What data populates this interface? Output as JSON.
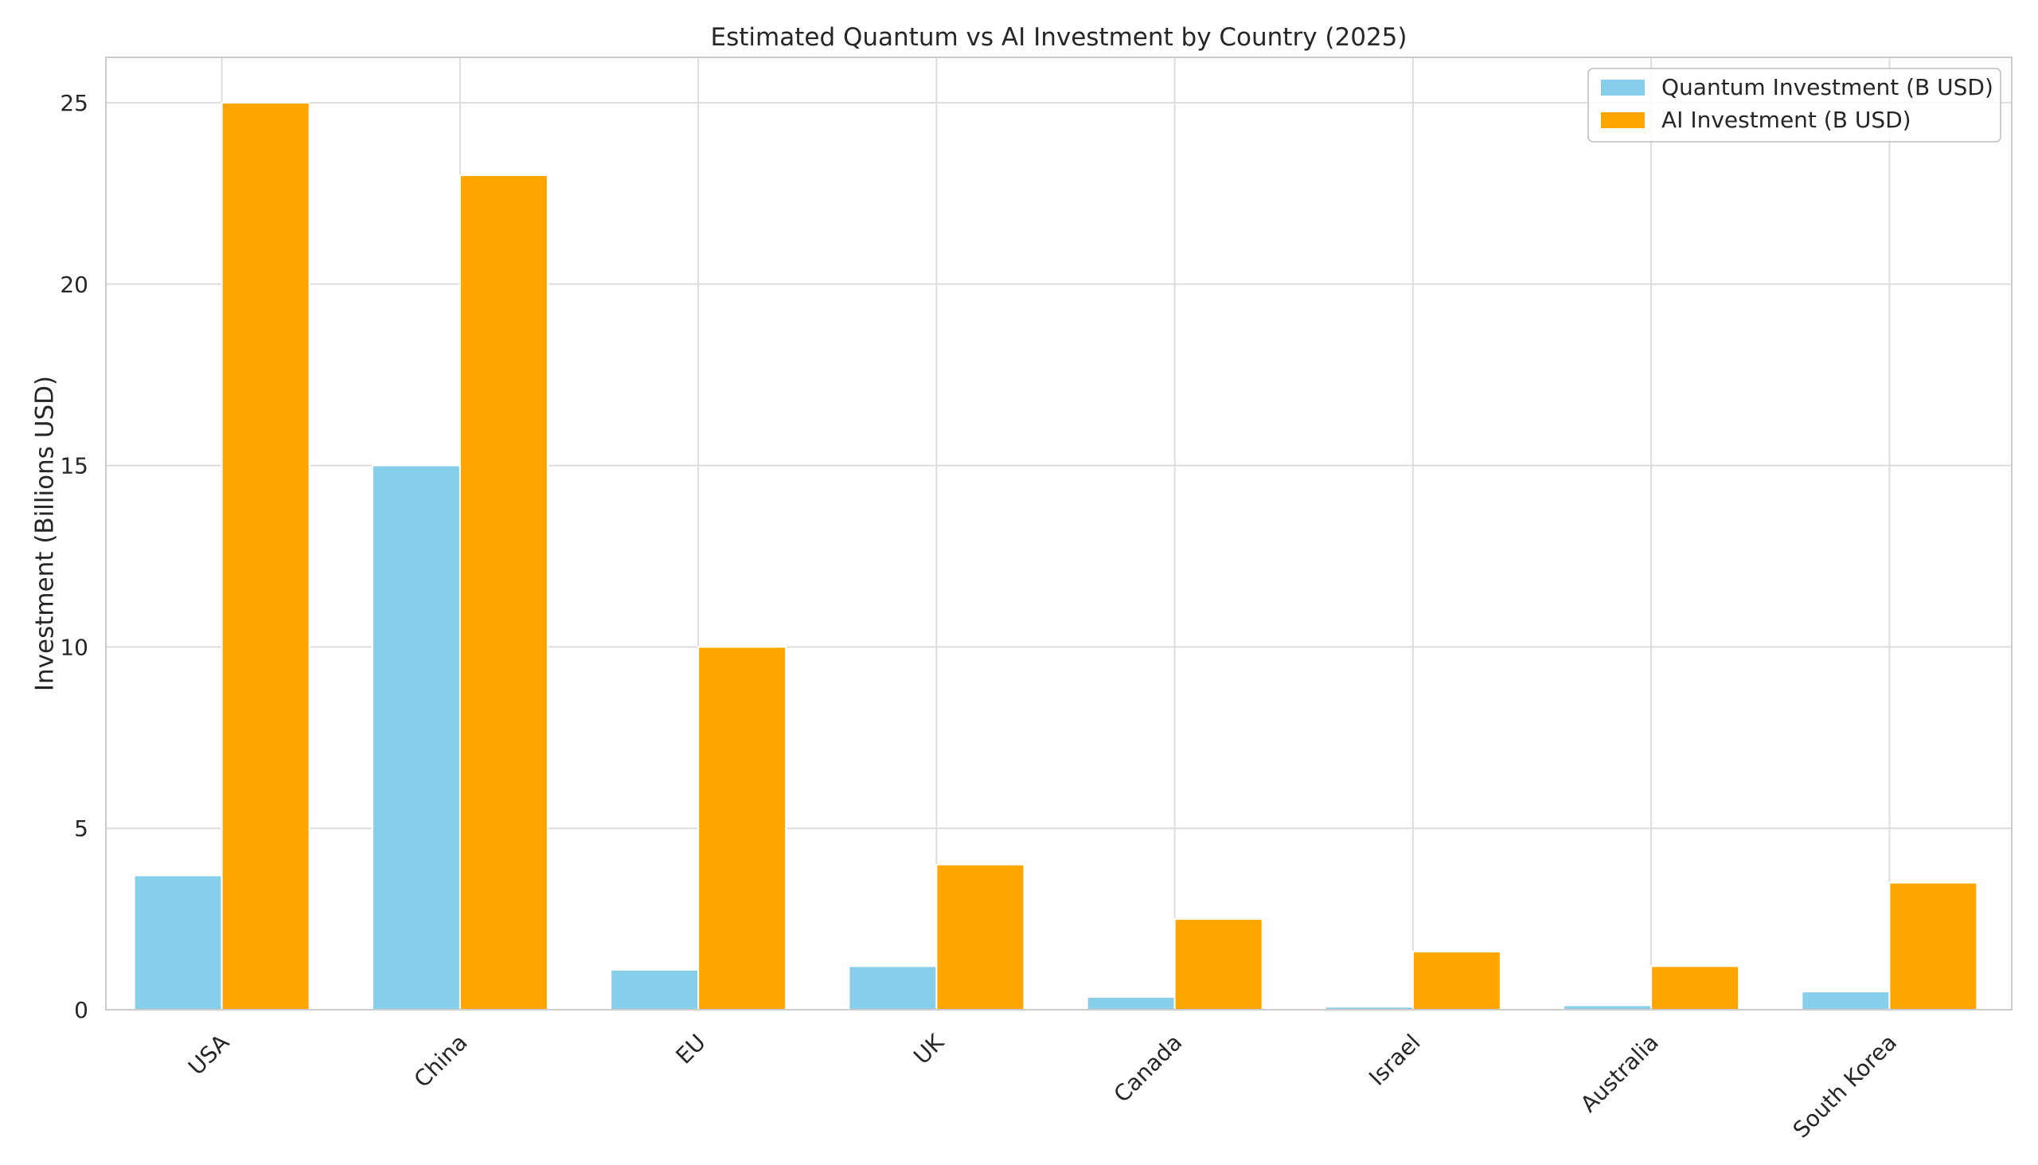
{
  "chart_data": {
    "type": "bar",
    "title": "Estimated Quantum vs AI Investment by Country (2025)",
    "xlabel": "",
    "ylabel": "Investment (Billions USD)",
    "categories": [
      "USA",
      "China",
      "EU",
      "UK",
      "Canada",
      "Israel",
      "Australia",
      "South Korea"
    ],
    "series": [
      {
        "name": "Quantum Investment (B USD)",
        "color": "#87ceeb",
        "values": [
          3.7,
          15.0,
          1.1,
          1.2,
          0.35,
          0.08,
          0.12,
          0.5
        ]
      },
      {
        "name": "AI Investment (B USD)",
        "color": "#ffa500",
        "values": [
          25.0,
          23.0,
          10.0,
          4.0,
          2.5,
          1.6,
          1.2,
          3.5
        ]
      }
    ],
    "ylim": [
      0,
      26.25
    ],
    "yticks": [
      0,
      5,
      10,
      15,
      20,
      25
    ],
    "grid": true,
    "legend_position": "top-right",
    "xtick_rotation": 45
  }
}
